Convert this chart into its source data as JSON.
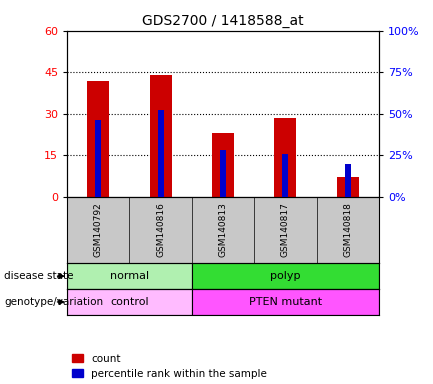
{
  "title": "GDS2700 / 1418588_at",
  "samples": [
    "GSM140792",
    "GSM140816",
    "GSM140813",
    "GSM140817",
    "GSM140818"
  ],
  "count_values": [
    42,
    44,
    23,
    28.5,
    7
  ],
  "percentile_values": [
    46,
    52,
    28,
    26,
    20
  ],
  "ylim_left": [
    0,
    60
  ],
  "ylim_right": [
    0,
    100
  ],
  "yticks_left": [
    0,
    15,
    30,
    45,
    60
  ],
  "yticks_right": [
    0,
    25,
    50,
    75,
    100
  ],
  "disease_state": [
    {
      "label": "normal",
      "span": [
        0,
        2
      ],
      "color": "#b0f0b0"
    },
    {
      "label": "polyp",
      "span": [
        2,
        5
      ],
      "color": "#33dd33"
    }
  ],
  "genotype": [
    {
      "label": "control",
      "span": [
        0,
        2
      ],
      "color": "#ffbbff"
    },
    {
      "label": "PTEN mutant",
      "span": [
        2,
        5
      ],
      "color": "#ff55ff"
    }
  ],
  "bar_color": "#cc0000",
  "percentile_color": "#0000cc",
  "grid_color": "#000000",
  "background_color": "#ffffff",
  "tick_bg": "#c8c8c8",
  "label_disease": "disease state",
  "label_genotype": "genotype/variation",
  "legend_count": "count",
  "legend_pct": "percentile rank within the sample"
}
